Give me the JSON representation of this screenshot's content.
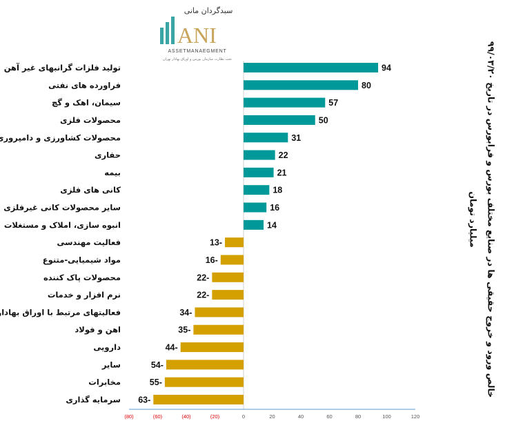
{
  "logo": {
    "text_fa": "سبدگردان مانی",
    "text_en": "ANI",
    "tagline": "ASSETMANAEGMENT",
    "subtext": "تحت نظارت سازمان بورس و اوراق بهادار تهران"
  },
  "chart_data": {
    "type": "bar",
    "orientation": "horizontal",
    "title": "خالص ورود و خروج حقیقی ها در صنایع مختلف بورس و فرابورس در تاریخ ۹۹/۰۳/۲۰",
    "subtitle": "میلیارد تومان",
    "categories": [
      "تولید فلزات گرانبهای غیر آهن",
      "فراورده های نفتی",
      "سیمان، اهک و گچ",
      "محصولات فلزی",
      "محصولات کشاورزی و دامپروری",
      "حفاری",
      "بیمه",
      "کانی های فلزی",
      "سایر محصولات کانی غیرفلزی",
      "انبوه سازی، املاک و مستغلات",
      "فعالیت مهندسی",
      "مواد شیمیایی-متنوع",
      "محصولات پاک کننده",
      "نرم افزار و خدمات",
      "فعالیتهای مرتبط با اوراق بهادار",
      "اهن و فولاد",
      "دارویی",
      "سایر",
      "مخابرات",
      "سرمایه گذاری"
    ],
    "values": [
      94,
      80,
      57,
      50,
      31,
      22,
      21,
      18,
      16,
      14,
      -13,
      -16,
      -22,
      -22,
      -34,
      -35,
      -44,
      -54,
      -55,
      -63
    ],
    "xlim": [
      -80,
      120
    ],
    "ticks": [
      -80,
      -60,
      -40,
      -20,
      0,
      20,
      40,
      60,
      80,
      100,
      120
    ],
    "tick_labels": [
      "(80)",
      "(60)",
      "(40)",
      "(20)",
      "0",
      "20",
      "40",
      "60",
      "80",
      "100",
      "120"
    ],
    "grid": false,
    "colors": {
      "positive": "#009999",
      "negative": "#D4A000",
      "negative_tick": "#E00000",
      "axis": "#5B9BD5"
    }
  }
}
